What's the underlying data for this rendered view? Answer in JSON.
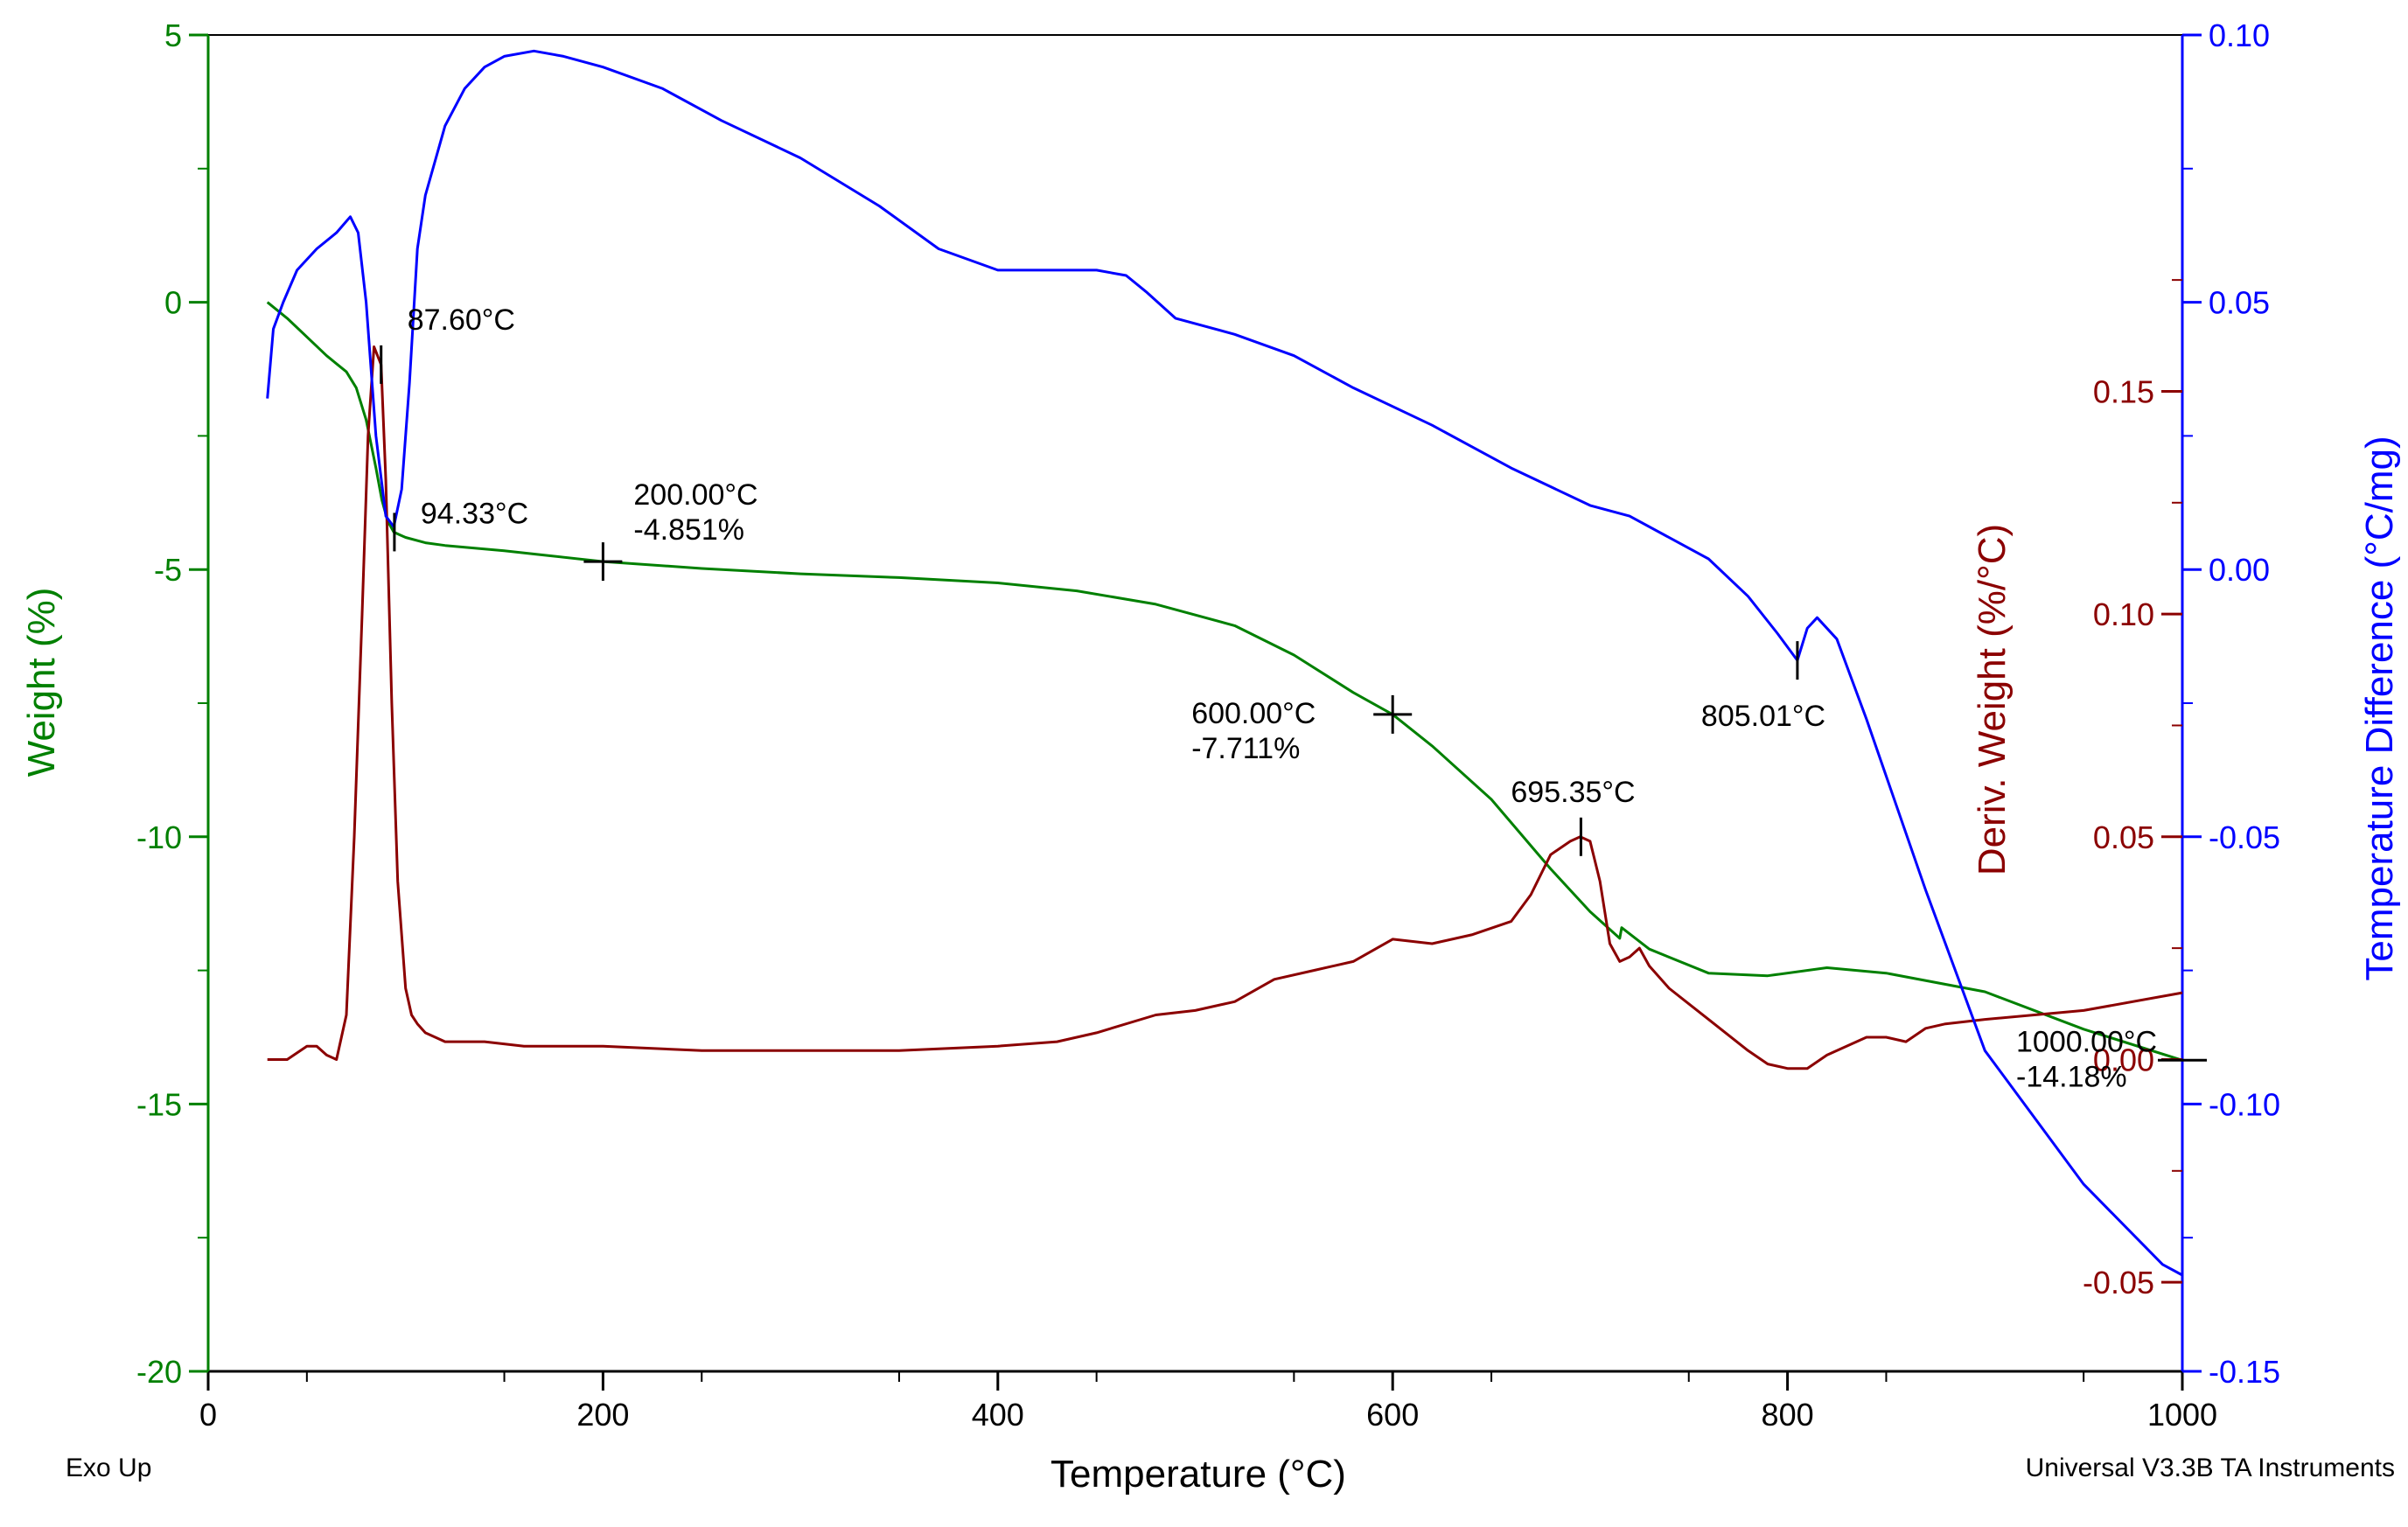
{
  "chart_data": {
    "type": "line",
    "title": "",
    "footer_left": "Exo Up",
    "footer_right": "Universal V3.3B TA Instruments",
    "xlabel": "Temperature (°C)",
    "xlim": [
      0,
      1000
    ],
    "x_ticks": [
      0,
      200,
      400,
      600,
      800,
      1000
    ],
    "x_tick_labels": [
      "0",
      "200",
      "400",
      "600",
      "800",
      "1000"
    ],
    "axes": {
      "weight": {
        "label": "Weight (%)",
        "ylim": [
          -20,
          5
        ],
        "ticks": [
          5,
          0,
          -5,
          -10,
          -15,
          -20
        ],
        "tick_labels": [
          "5",
          "0",
          "-5",
          "-10",
          "-15",
          "-20"
        ],
        "color": "#008000"
      },
      "deriv": {
        "label": "Deriv. Weight (%/°C)",
        "ylim": [
          -0.07,
          0.23
        ],
        "ticks": [
          0.15,
          0.1,
          0.05,
          0.0,
          -0.05
        ],
        "tick_labels": [
          "0.15",
          "0.10",
          "0.05",
          "0.00",
          "-0.05"
        ],
        "color": "#8B0000"
      },
      "tempdiff": {
        "label": "Temperature Difference (°C/mg)",
        "ylim": [
          -0.15,
          0.1
        ],
        "ticks": [
          0.1,
          0.05,
          0.0,
          -0.05,
          -0.1,
          -0.15
        ],
        "tick_labels": [
          "0.10",
          "0.05",
          "0.00",
          "-0.05",
          "-0.10",
          "-0.15"
        ],
        "color": "#0000FF"
      }
    },
    "series": [
      {
        "axis": "weight",
        "color": "#008000",
        "x": [
          30,
          40,
          50,
          60,
          70,
          75,
          80,
          85,
          88,
          91,
          94,
          97,
          100,
          110,
          120,
          150,
          200,
          250,
          300,
          350,
          400,
          440,
          480,
          520,
          550,
          580,
          600,
          620,
          650,
          680,
          700,
          715,
          716,
          730,
          760,
          790,
          820,
          850,
          900,
          950,
          1000
        ],
        "y": [
          0.0,
          -0.3,
          -0.65,
          -1.0,
          -1.3,
          -1.6,
          -2.2,
          -3.1,
          -3.7,
          -4.1,
          -4.3,
          -4.35,
          -4.4,
          -4.5,
          -4.55,
          -4.65,
          -4.851,
          -4.98,
          -5.08,
          -5.15,
          -5.25,
          -5.4,
          -5.65,
          -6.05,
          -6.6,
          -7.3,
          -7.711,
          -8.3,
          -9.3,
          -10.6,
          -11.4,
          -11.9,
          -11.7,
          -12.1,
          -12.55,
          -12.6,
          -12.45,
          -12.55,
          -12.9,
          -13.6,
          -14.18
        ]
      },
      {
        "axis": "deriv",
        "color": "#8B0000",
        "x": [
          30,
          40,
          50,
          55,
          60,
          65,
          70,
          74,
          78,
          81,
          84,
          87.6,
          90,
          93,
          96,
          100,
          103,
          106,
          110,
          115,
          120,
          140,
          160,
          200,
          250,
          300,
          350,
          400,
          430,
          450,
          480,
          500,
          520,
          540,
          560,
          580,
          600,
          620,
          640,
          660,
          670,
          680,
          690,
          695,
          700,
          705,
          710,
          715,
          720,
          725,
          730,
          740,
          760,
          780,
          790,
          800,
          810,
          820,
          840,
          850,
          860,
          870,
          880,
          900,
          950,
          1000
        ],
        "y": [
          -0.0,
          0.0,
          0.003,
          0.003,
          0.001,
          0.0,
          0.01,
          0.05,
          0.1,
          0.14,
          0.16,
          0.156,
          0.13,
          0.08,
          0.04,
          0.016,
          0.01,
          0.008,
          0.006,
          0.005,
          0.004,
          0.004,
          0.003,
          0.003,
          0.002,
          0.002,
          0.002,
          0.003,
          0.004,
          0.006,
          0.01,
          0.011,
          0.013,
          0.018,
          0.02,
          0.022,
          0.027,
          0.026,
          0.028,
          0.031,
          0.037,
          0.046,
          0.049,
          0.05,
          0.049,
          0.04,
          0.026,
          0.022,
          0.023,
          0.025,
          0.021,
          0.016,
          0.009,
          0.002,
          -0.001,
          -0.002,
          -0.002,
          0.001,
          0.005,
          0.005,
          0.004,
          0.007,
          0.008,
          0.009,
          0.011,
          0.015
        ]
      },
      {
        "axis": "tempdiff",
        "color": "#0000FF",
        "x": [
          30,
          33,
          38,
          45,
          55,
          65,
          72,
          76,
          80,
          85,
          90,
          94,
          98,
          102,
          106,
          110,
          120,
          130,
          140,
          150,
          165,
          180,
          200,
          230,
          260,
          300,
          340,
          370,
          400,
          430,
          450,
          465,
          475,
          490,
          520,
          550,
          580,
          620,
          660,
          700,
          720,
          760,
          780,
          795,
          805,
          810,
          815,
          825,
          840,
          870,
          900,
          950,
          990,
          1000
        ],
        "y": [
          0.032,
          0.045,
          0.05,
          0.056,
          0.06,
          0.063,
          0.066,
          0.063,
          0.05,
          0.025,
          0.01,
          0.008,
          0.015,
          0.035,
          0.06,
          0.07,
          0.083,
          0.09,
          0.094,
          0.096,
          0.097,
          0.096,
          0.094,
          0.09,
          0.084,
          0.077,
          0.068,
          0.06,
          0.056,
          0.056,
          0.056,
          0.055,
          0.052,
          0.047,
          0.044,
          0.04,
          0.034,
          0.027,
          0.019,
          0.012,
          0.01,
          0.002,
          -0.005,
          -0.012,
          -0.017,
          -0.011,
          -0.009,
          -0.013,
          -0.028,
          -0.06,
          -0.09,
          -0.115,
          -0.13,
          -0.132
        ]
      }
    ],
    "annotations": [
      {
        "text": "87.60°C",
        "x": 87.6,
        "axis": "deriv",
        "y": 0.156,
        "marker": "tick",
        "label_dx": 30,
        "label_dy": -40
      },
      {
        "text": "94.33°C",
        "x": 94.33,
        "axis": "weight",
        "y": -4.3,
        "marker": "tick",
        "label_dx": 30,
        "label_dy": -10
      },
      {
        "text": "200.00°C",
        "x": 200,
        "axis": "weight",
        "y": -4.851,
        "marker": "cross",
        "label_dx": 35,
        "label_dy": -65,
        "text2": "-4.851%"
      },
      {
        "text": "600.00°C",
        "x": 600,
        "axis": "weight",
        "y": -7.711,
        "marker": "cross",
        "label_dx": -230,
        "label_dy": 10,
        "text2": "-7.711%"
      },
      {
        "text": "695.35°C",
        "x": 695.35,
        "axis": "deriv",
        "y": 0.05,
        "marker": "tick",
        "label_dx": -80,
        "label_dy": -40
      },
      {
        "text": "805.01°C",
        "x": 805.01,
        "axis": "tempdiff",
        "y": -0.017,
        "marker": "tick",
        "label_dx": -110,
        "label_dy": 75
      },
      {
        "text": "1000.00°C",
        "x": 1000,
        "axis": "weight",
        "y": -14.18,
        "marker": "dash",
        "label_dx": -190,
        "label_dy": -10,
        "text2": "-14.18%"
      }
    ]
  }
}
